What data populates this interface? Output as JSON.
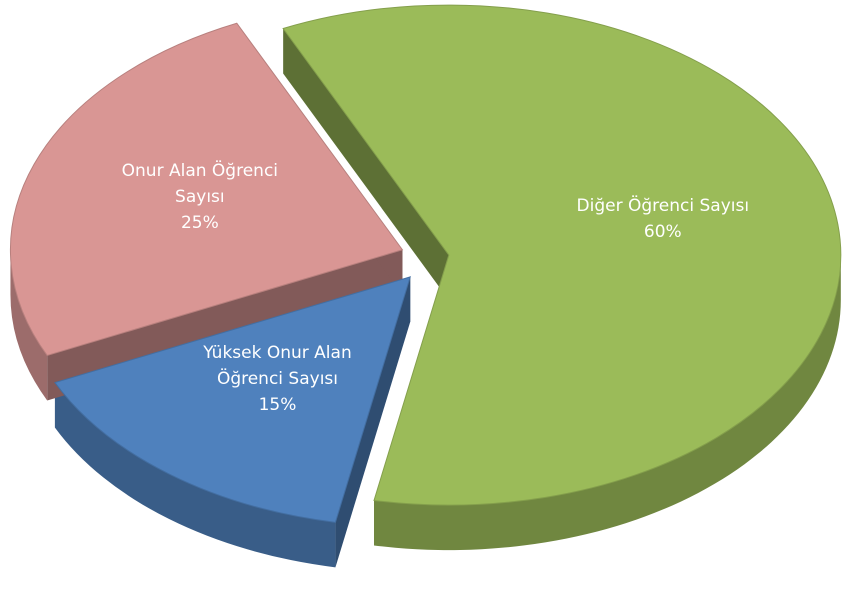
{
  "chart_data": {
    "type": "pie",
    "categories": [
      "Diğer Öğrenci Sayısı",
      "Yüksek Onur Alan Öğrenci Sayısı",
      "Onur Alan Öğrenci Sayısı"
    ],
    "values": [
      60,
      15,
      25
    ],
    "value_labels": [
      "60%",
      "15%",
      "25%"
    ],
    "colors": [
      "#9bbb59",
      "#4f81bd",
      "#d99694"
    ]
  }
}
